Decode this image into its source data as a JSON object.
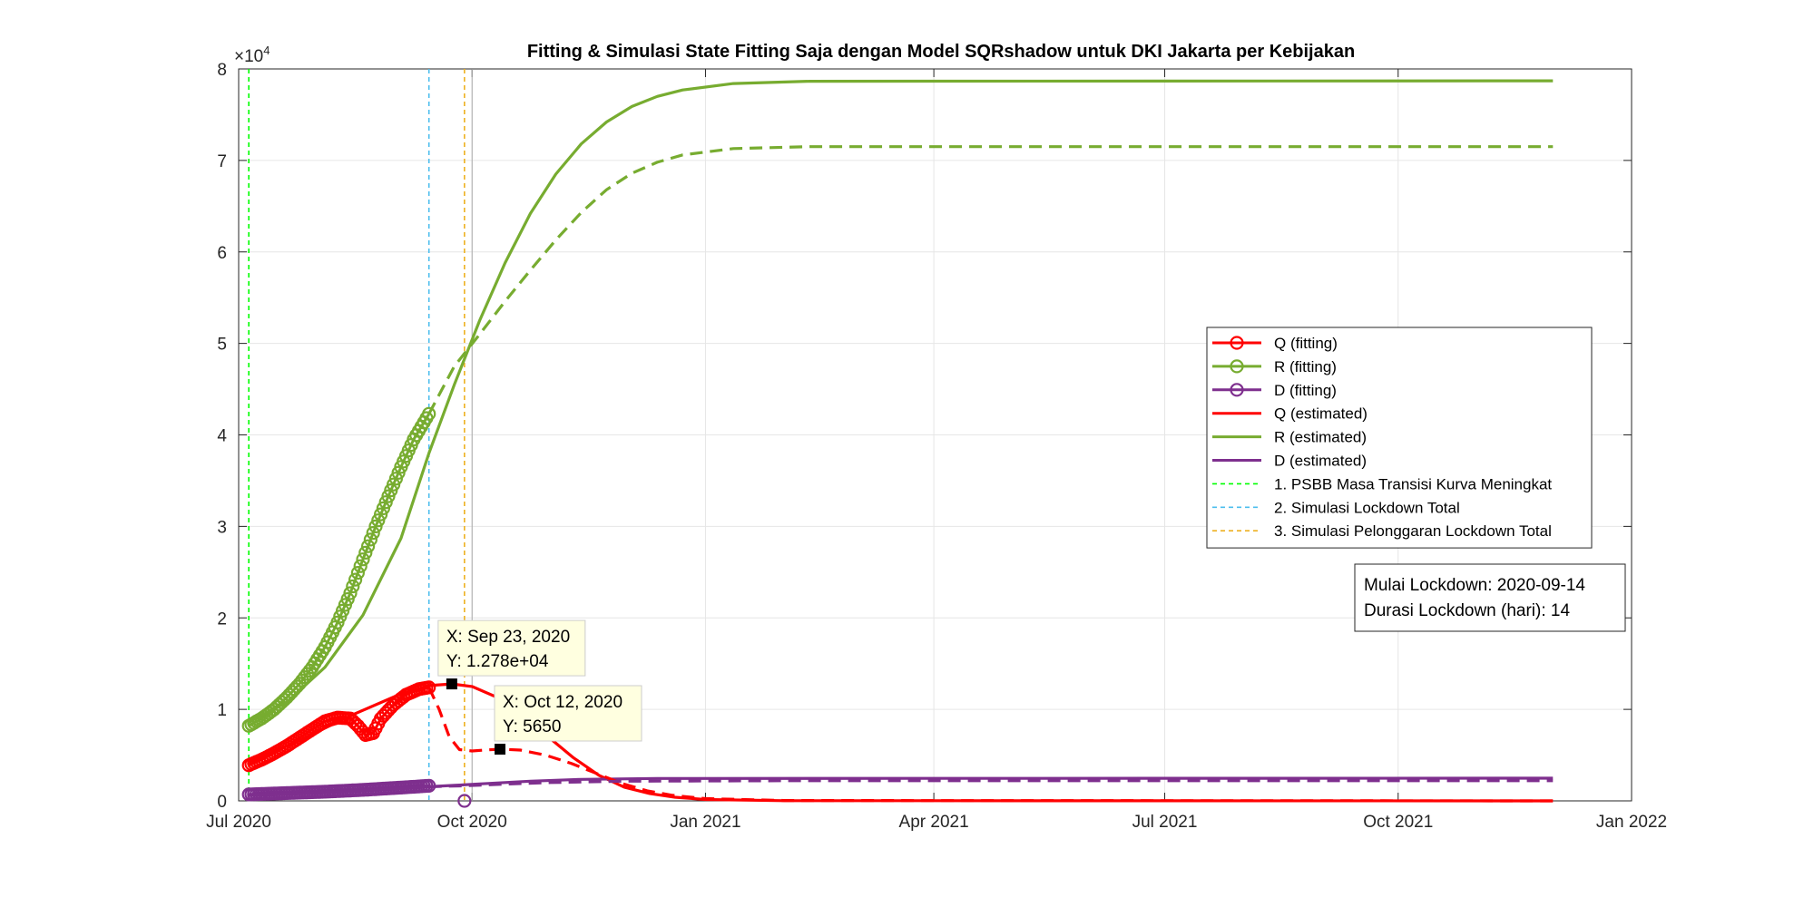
{
  "chart_data": {
    "type": "line",
    "title": "Fitting & Simulasi State Fitting Saja dengan Model SQRshadow untuk DKI Jakarta per Kebijakan",
    "xlabel": "",
    "ylabel": "",
    "exponent_label": "×10",
    "exponent_power": "4",
    "xlim": [
      "2020-07-01",
      "2022-01-01"
    ],
    "ylim": [
      0,
      80000
    ],
    "grid": true,
    "legend_position": "right",
    "x_ticks": [
      {
        "date": "2020-07-01",
        "label": "Jul 2020"
      },
      {
        "date": "2020-10-01",
        "label": "Oct 2020"
      },
      {
        "date": "2021-01-01",
        "label": "Jan 2021"
      },
      {
        "date": "2021-04-01",
        "label": "Apr 2021"
      },
      {
        "date": "2021-07-01",
        "label": "Jul 2021"
      },
      {
        "date": "2021-10-01",
        "label": "Oct 2021"
      },
      {
        "date": "2022-01-01",
        "label": "Jan 2022"
      }
    ],
    "y_ticks": [
      {
        "value": 0,
        "label": "0"
      },
      {
        "value": 10000,
        "label": "1"
      },
      {
        "value": 20000,
        "label": "2"
      },
      {
        "value": 30000,
        "label": "3"
      },
      {
        "value": 40000,
        "label": "4"
      },
      {
        "value": 50000,
        "label": "5"
      },
      {
        "value": 60000,
        "label": "6"
      },
      {
        "value": 70000,
        "label": "7"
      },
      {
        "value": 80000,
        "label": "8"
      }
    ],
    "series": [
      {
        "name": "Q (fitting)",
        "color": "#ff0000",
        "style": "marker-line",
        "points": [
          [
            "2020-07-05",
            3900
          ],
          [
            "2020-07-10",
            4500
          ],
          [
            "2020-07-15",
            5200
          ],
          [
            "2020-07-20",
            6000
          ],
          [
            "2020-07-25",
            6900
          ],
          [
            "2020-07-30",
            7800
          ],
          [
            "2020-08-04",
            8700
          ],
          [
            "2020-08-09",
            9100
          ],
          [
            "2020-08-14",
            9000
          ],
          [
            "2020-08-17",
            8200
          ],
          [
            "2020-08-20",
            7200
          ],
          [
            "2020-08-23",
            7400
          ],
          [
            "2020-08-26",
            9000
          ],
          [
            "2020-08-31",
            10500
          ],
          [
            "2020-09-05",
            11600
          ],
          [
            "2020-09-10",
            12200
          ],
          [
            "2020-09-14",
            12400
          ]
        ]
      },
      {
        "name": "R (fitting)",
        "color": "#77ac30",
        "style": "marker-line",
        "points": [
          [
            "2020-07-05",
            8200
          ],
          [
            "2020-07-10",
            9000
          ],
          [
            "2020-07-15",
            10000
          ],
          [
            "2020-07-20",
            11300
          ],
          [
            "2020-07-25",
            12800
          ],
          [
            "2020-07-30",
            14600
          ],
          [
            "2020-08-04",
            16800
          ],
          [
            "2020-08-09",
            19500
          ],
          [
            "2020-08-14",
            22700
          ],
          [
            "2020-08-19",
            26400
          ],
          [
            "2020-08-24",
            30000
          ],
          [
            "2020-08-29",
            33300
          ],
          [
            "2020-09-03",
            36500
          ],
          [
            "2020-09-08",
            39500
          ],
          [
            "2020-09-14",
            42300
          ]
        ]
      },
      {
        "name": "D (fitting)",
        "color": "#7e2f8e",
        "style": "marker-line",
        "points": [
          [
            "2020-07-05",
            700
          ],
          [
            "2020-07-20",
            850
          ],
          [
            "2020-08-04",
            1000
          ],
          [
            "2020-08-19",
            1200
          ],
          [
            "2020-09-03",
            1450
          ],
          [
            "2020-09-14",
            1650
          ]
        ]
      },
      {
        "name": "Q (estimated)",
        "color": "#ff0000",
        "style": "solid",
        "points": [
          [
            "2020-07-05",
            4200
          ],
          [
            "2020-07-25",
            6600
          ],
          [
            "2020-08-14",
            9300
          ],
          [
            "2020-09-03",
            11700
          ],
          [
            "2020-09-14",
            12600
          ],
          [
            "2020-09-23",
            12780
          ],
          [
            "2020-10-01",
            12500
          ],
          [
            "2020-10-11",
            11300
          ],
          [
            "2020-10-21",
            9300
          ],
          [
            "2020-10-31",
            7000
          ],
          [
            "2020-11-10",
            4700
          ],
          [
            "2020-11-20",
            2800
          ],
          [
            "2020-11-30",
            1500
          ],
          [
            "2020-12-10",
            800
          ],
          [
            "2020-12-20",
            400
          ],
          [
            "2021-01-01",
            150
          ],
          [
            "2021-02-01",
            20
          ],
          [
            "2021-12-01",
            0
          ]
        ]
      },
      {
        "name": "R (estimated)",
        "color": "#77ac30",
        "style": "solid",
        "points": [
          [
            "2020-07-05",
            8600
          ],
          [
            "2020-07-20",
            10800
          ],
          [
            "2020-08-04",
            14600
          ],
          [
            "2020-08-19",
            20300
          ],
          [
            "2020-09-03",
            28700
          ],
          [
            "2020-09-14",
            38000
          ],
          [
            "2020-09-24",
            45500
          ],
          [
            "2020-10-04",
            52500
          ],
          [
            "2020-10-14",
            58800
          ],
          [
            "2020-10-24",
            64200
          ],
          [
            "2020-11-03",
            68500
          ],
          [
            "2020-11-13",
            71800
          ],
          [
            "2020-11-23",
            74200
          ],
          [
            "2020-12-03",
            75900
          ],
          [
            "2020-12-13",
            77000
          ],
          [
            "2020-12-23",
            77700
          ],
          [
            "2021-01-12",
            78400
          ],
          [
            "2021-02-11",
            78650
          ],
          [
            "2021-12-01",
            78700
          ]
        ]
      },
      {
        "name": "D (estimated)",
        "color": "#7e2f8e",
        "style": "solid",
        "points": [
          [
            "2020-07-05",
            600
          ],
          [
            "2020-07-25",
            800
          ],
          [
            "2020-08-14",
            1050
          ],
          [
            "2020-09-03",
            1350
          ],
          [
            "2020-09-14",
            1550
          ],
          [
            "2020-09-24",
            1700
          ],
          [
            "2020-10-04",
            1850
          ],
          [
            "2020-10-14",
            2000
          ],
          [
            "2020-10-24",
            2150
          ],
          [
            "2020-11-13",
            2350
          ],
          [
            "2020-12-13",
            2450
          ],
          [
            "2021-12-01",
            2480
          ]
        ]
      },
      {
        "name": "",
        "color": "#77ac30",
        "style": "dashed",
        "points": [
          [
            "2020-09-14",
            42300
          ],
          [
            "2020-09-24",
            47500
          ],
          [
            "2020-10-04",
            51000
          ],
          [
            "2020-10-14",
            54600
          ],
          [
            "2020-10-24",
            58000
          ],
          [
            "2020-11-03",
            61300
          ],
          [
            "2020-11-13",
            64300
          ],
          [
            "2020-11-23",
            66800
          ],
          [
            "2020-12-03",
            68600
          ],
          [
            "2020-12-13",
            69800
          ],
          [
            "2020-12-23",
            70600
          ],
          [
            "2021-01-12",
            71300
          ],
          [
            "2021-02-11",
            71500
          ],
          [
            "2021-12-01",
            71500
          ]
        ]
      },
      {
        "name": "",
        "color": "#ff0000",
        "style": "dashed",
        "points": [
          [
            "2020-09-14",
            12400
          ],
          [
            "2020-09-18",
            10000
          ],
          [
            "2020-09-22",
            7000
          ],
          [
            "2020-09-26",
            5600
          ],
          [
            "2020-10-01",
            5450
          ],
          [
            "2020-10-06",
            5550
          ],
          [
            "2020-10-12",
            5650
          ],
          [
            "2020-10-20",
            5550
          ],
          [
            "2020-10-30",
            5000
          ],
          [
            "2020-11-09",
            4100
          ],
          [
            "2020-11-19",
            3000
          ],
          [
            "2020-11-29",
            1900
          ],
          [
            "2020-12-09",
            1100
          ],
          [
            "2020-12-19",
            600
          ],
          [
            "2021-01-01",
            250
          ],
          [
            "2021-02-01",
            40
          ],
          [
            "2021-12-01",
            0
          ]
        ]
      },
      {
        "name": "",
        "color": "#7e2f8e",
        "style": "dashed",
        "points": [
          [
            "2020-09-14",
            1550
          ],
          [
            "2020-09-28",
            1650
          ],
          [
            "2020-10-12",
            1800
          ],
          [
            "2020-11-01",
            2000
          ],
          [
            "2020-12-01",
            2150
          ],
          [
            "2021-02-01",
            2200
          ],
          [
            "2021-12-01",
            2200
          ]
        ]
      }
    ],
    "marker_points": [
      {
        "color": "#7e2f8e",
        "date": "2020-09-28",
        "value": 0
      }
    ],
    "policy_lines": [
      {
        "name": "1. PSBB Masa Transisi Kurva Meningkat",
        "date": "2020-07-05",
        "color": "#00ff00"
      },
      {
        "name": "2. Simulasi Lockdown Total",
        "date": "2020-09-14",
        "color": "#4dbeee"
      },
      {
        "name": "3. Simulasi Pelonggaran Lockdown Total",
        "date": "2020-09-28",
        "color": "#edb120"
      }
    ],
    "extra_vline": {
      "date": "2020-10-01",
      "color": "#aaaaaa"
    },
    "datatips": [
      {
        "date": "2020-09-23",
        "value": 12780,
        "x_text": "X: Sep 23, 2020",
        "y_text": "Y: 1.278e+04"
      },
      {
        "date": "2020-10-12",
        "value": 5650,
        "x_text": "X: Oct 12, 2020",
        "y_text": "Y: 5650"
      }
    ],
    "legend": [
      {
        "label": "Q (fitting)",
        "color": "#ff0000",
        "style": "marker-line"
      },
      {
        "label": "R (fitting)",
        "color": "#77ac30",
        "style": "marker-line"
      },
      {
        "label": "D (fitting)",
        "color": "#7e2f8e",
        "style": "marker-line"
      },
      {
        "label": "Q (estimated)",
        "color": "#ff0000",
        "style": "solid"
      },
      {
        "label": "R (estimated)",
        "color": "#77ac30",
        "style": "solid"
      },
      {
        "label": "D (estimated)",
        "color": "#7e2f8e",
        "style": "solid"
      },
      {
        "label": "1. PSBB Masa Transisi Kurva Meningkat",
        "color": "#00ff00",
        "style": "dashed"
      },
      {
        "label": "2. Simulasi Lockdown Total",
        "color": "#4dbeee",
        "style": "dashed"
      },
      {
        "label": "3. Simulasi Pelonggaran Lockdown Total",
        "color": "#edb120",
        "style": "dashed"
      }
    ],
    "info_box": [
      "Mulai Lockdown: 2020-09-14",
      "Durasi Lockdown (hari): 14"
    ]
  }
}
